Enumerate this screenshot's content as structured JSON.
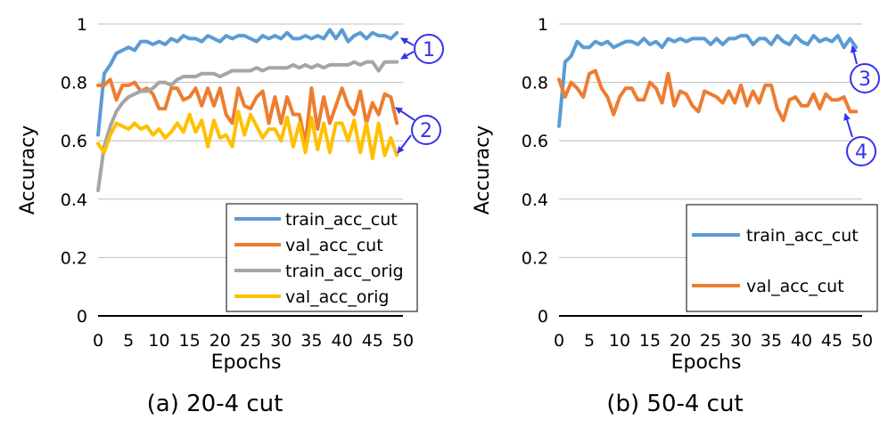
{
  "chart_data": [
    {
      "type": "line",
      "caption": "(a) 20-4 cut",
      "xlabel": "Epochs",
      "ylabel": "Accuracy",
      "xlim": [
        0,
        50
      ],
      "ylim": [
        0,
        1
      ],
      "xticks": [
        "0",
        "5",
        "10",
        "15",
        "20",
        "25",
        "30",
        "35",
        "40",
        "45",
        "50"
      ],
      "yticks": [
        "0",
        "0.2",
        "0.4",
        "0.6",
        "0.8",
        "1"
      ],
      "legend_position": "bottom-right",
      "legend_box": true,
      "x": [
        0,
        1,
        2,
        3,
        4,
        5,
        6,
        7,
        8,
        9,
        10,
        11,
        12,
        13,
        14,
        15,
        16,
        17,
        18,
        19,
        20,
        21,
        22,
        23,
        24,
        25,
        26,
        27,
        28,
        29,
        30,
        31,
        32,
        33,
        34,
        35,
        36,
        37,
        38,
        39,
        40,
        41,
        42,
        43,
        44,
        45,
        46,
        47,
        48,
        49
      ],
      "series": [
        {
          "name": "train_acc_cut",
          "color": "#5b9bd5",
          "values": [
            0.62,
            0.83,
            0.86,
            0.9,
            0.91,
            0.92,
            0.91,
            0.94,
            0.94,
            0.93,
            0.94,
            0.93,
            0.95,
            0.94,
            0.96,
            0.95,
            0.95,
            0.94,
            0.96,
            0.95,
            0.94,
            0.96,
            0.95,
            0.96,
            0.96,
            0.95,
            0.94,
            0.96,
            0.95,
            0.96,
            0.95,
            0.97,
            0.95,
            0.95,
            0.96,
            0.95,
            0.96,
            0.95,
            0.98,
            0.95,
            0.98,
            0.94,
            0.96,
            0.97,
            0.95,
            0.97,
            0.96,
            0.96,
            0.95,
            0.97
          ]
        },
        {
          "name": "val_acc_cut",
          "color": "#ed7d31",
          "values": [
            0.79,
            0.79,
            0.81,
            0.74,
            0.79,
            0.79,
            0.8,
            0.77,
            0.78,
            0.76,
            0.71,
            0.71,
            0.78,
            0.78,
            0.74,
            0.75,
            0.78,
            0.72,
            0.78,
            0.72,
            0.78,
            0.69,
            0.66,
            0.78,
            0.72,
            0.71,
            0.75,
            0.77,
            0.66,
            0.75,
            0.66,
            0.75,
            0.69,
            0.69,
            0.59,
            0.78,
            0.64,
            0.75,
            0.66,
            0.72,
            0.78,
            0.72,
            0.69,
            0.77,
            0.66,
            0.73,
            0.69,
            0.76,
            0.75,
            0.66
          ]
        },
        {
          "name": "train_acc_orig",
          "color": "#a5a5a5",
          "values": [
            0.43,
            0.58,
            0.65,
            0.7,
            0.73,
            0.75,
            0.76,
            0.77,
            0.77,
            0.78,
            0.8,
            0.8,
            0.79,
            0.81,
            0.82,
            0.82,
            0.82,
            0.83,
            0.83,
            0.83,
            0.82,
            0.83,
            0.84,
            0.84,
            0.84,
            0.84,
            0.85,
            0.84,
            0.85,
            0.85,
            0.85,
            0.85,
            0.86,
            0.85,
            0.86,
            0.85,
            0.86,
            0.85,
            0.86,
            0.86,
            0.86,
            0.86,
            0.87,
            0.86,
            0.87,
            0.87,
            0.84,
            0.87,
            0.87,
            0.87
          ]
        },
        {
          "name": "val_acc_orig",
          "color": "#ffc000",
          "values": [
            0.59,
            0.56,
            0.62,
            0.66,
            0.65,
            0.64,
            0.66,
            0.64,
            0.65,
            0.62,
            0.64,
            0.61,
            0.63,
            0.66,
            0.63,
            0.69,
            0.63,
            0.67,
            0.58,
            0.67,
            0.61,
            0.62,
            0.58,
            0.7,
            0.62,
            0.69,
            0.65,
            0.61,
            0.64,
            0.64,
            0.6,
            0.68,
            0.58,
            0.66,
            0.56,
            0.68,
            0.57,
            0.66,
            0.56,
            0.66,
            0.66,
            0.6,
            0.67,
            0.56,
            0.66,
            0.54,
            0.66,
            0.55,
            0.61,
            0.55
          ]
        }
      ],
      "callouts": [
        {
          "label": "1",
          "points_to": [
            "train_acc_cut",
            "train_acc_orig"
          ]
        },
        {
          "label": "2",
          "points_to": [
            "val_acc_cut",
            "val_acc_orig"
          ]
        }
      ]
    },
    {
      "type": "line",
      "caption": "(b) 50-4 cut",
      "xlabel": "Epochs",
      "ylabel": "Accuracy",
      "xlim": [
        0,
        50
      ],
      "ylim": [
        0,
        1
      ],
      "xticks": [
        "0",
        "5",
        "10",
        "15",
        "20",
        "25",
        "30",
        "35",
        "40",
        "45",
        "50"
      ],
      "yticks": [
        "0",
        "0.2",
        "0.4",
        "0.6",
        "0.8",
        "1"
      ],
      "legend_position": "bottom-right",
      "legend_box": true,
      "x": [
        0,
        1,
        2,
        3,
        4,
        5,
        6,
        7,
        8,
        9,
        10,
        11,
        12,
        13,
        14,
        15,
        16,
        17,
        18,
        19,
        20,
        21,
        22,
        23,
        24,
        25,
        26,
        27,
        28,
        29,
        30,
        31,
        32,
        33,
        34,
        35,
        36,
        37,
        38,
        39,
        40,
        41,
        42,
        43,
        44,
        45,
        46,
        47,
        48,
        49
      ],
      "series": [
        {
          "name": "train_acc_cut",
          "color": "#5b9bd5",
          "values": [
            0.65,
            0.87,
            0.89,
            0.94,
            0.92,
            0.92,
            0.94,
            0.93,
            0.94,
            0.92,
            0.93,
            0.94,
            0.94,
            0.93,
            0.95,
            0.93,
            0.94,
            0.92,
            0.95,
            0.94,
            0.95,
            0.94,
            0.95,
            0.95,
            0.95,
            0.93,
            0.95,
            0.93,
            0.95,
            0.95,
            0.96,
            0.96,
            0.93,
            0.95,
            0.95,
            0.93,
            0.96,
            0.94,
            0.93,
            0.96,
            0.94,
            0.93,
            0.96,
            0.94,
            0.95,
            0.94,
            0.96,
            0.92,
            0.95,
            0.92
          ]
        },
        {
          "name": "val_acc_cut",
          "color": "#ed7d31",
          "values": [
            0.81,
            0.75,
            0.8,
            0.78,
            0.75,
            0.83,
            0.84,
            0.78,
            0.75,
            0.69,
            0.75,
            0.78,
            0.78,
            0.74,
            0.74,
            0.8,
            0.78,
            0.73,
            0.83,
            0.72,
            0.77,
            0.76,
            0.72,
            0.7,
            0.77,
            0.76,
            0.75,
            0.73,
            0.77,
            0.73,
            0.79,
            0.72,
            0.77,
            0.73,
            0.79,
            0.79,
            0.71,
            0.67,
            0.74,
            0.75,
            0.72,
            0.72,
            0.76,
            0.71,
            0.76,
            0.74,
            0.74,
            0.75,
            0.7,
            0.7
          ]
        }
      ],
      "callouts": [
        {
          "label": "3",
          "points_to": [
            "train_acc_cut"
          ]
        },
        {
          "label": "4",
          "points_to": [
            "val_acc_cut"
          ]
        }
      ]
    }
  ]
}
